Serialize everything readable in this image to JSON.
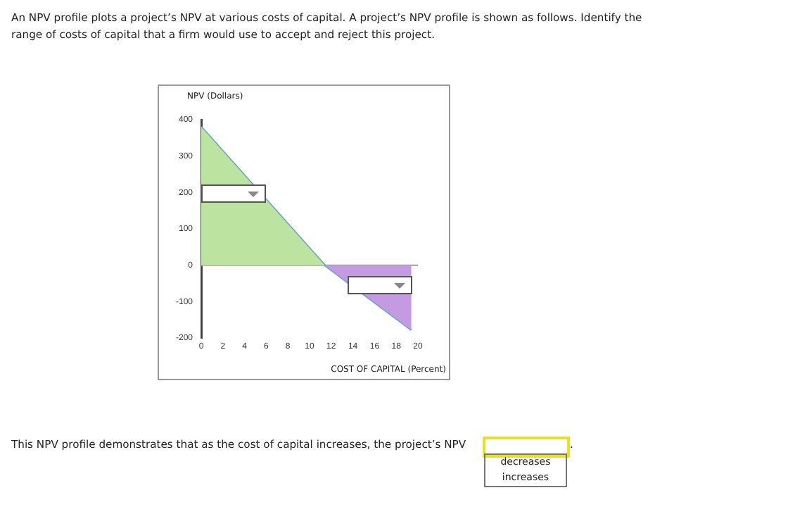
{
  "chart_data": {
    "type": "area",
    "title": "An NPV profile plots a project’s NPV at various costs of capital. A project’s NPV profile is shown as follows. Identify the range of costs of capital that a firm would use to accept and reject this project.",
    "xlabel": "COST OF CAPITAL (Percent)",
    "ylabel": "NPV (Dollars)",
    "series": [
      {
        "type": "area",
        "color": "#bde3a0",
        "x": [
          0,
          11.4
        ],
        "values": [
          380,
          0
        ]
      },
      {
        "type": "area",
        "color": "#c49ae0",
        "x": [
          11.4,
          19.4
        ],
        "values": [
          0,
          -178
        ]
      },
      {
        "type": "line",
        "color": "#6a9fd4",
        "x": [
          0,
          11.4,
          19.4
        ],
        "values": [
          380,
          0,
          -178
        ]
      }
    ],
    "xlim": [
      0,
      20
    ],
    "xticks": [
      0,
      2,
      4,
      6,
      8,
      10,
      12,
      14,
      16,
      18,
      20
    ],
    "ylim": [
      -200,
      400
    ],
    "yticks": [
      -200,
      -100,
      0,
      100,
      200,
      300,
      400
    ],
    "ref_lines": [
      {
        "axis": "y",
        "value": 0,
        "color": "#a0a0a0"
      }
    ],
    "grid": false,
    "legend": false,
    "marker": "none",
    "annotations": [
      "This NPV profile demonstrates that as the cost of capital increases, the project’s NPV",
      ".",
      "decreases",
      "increases"
    ]
  }
}
